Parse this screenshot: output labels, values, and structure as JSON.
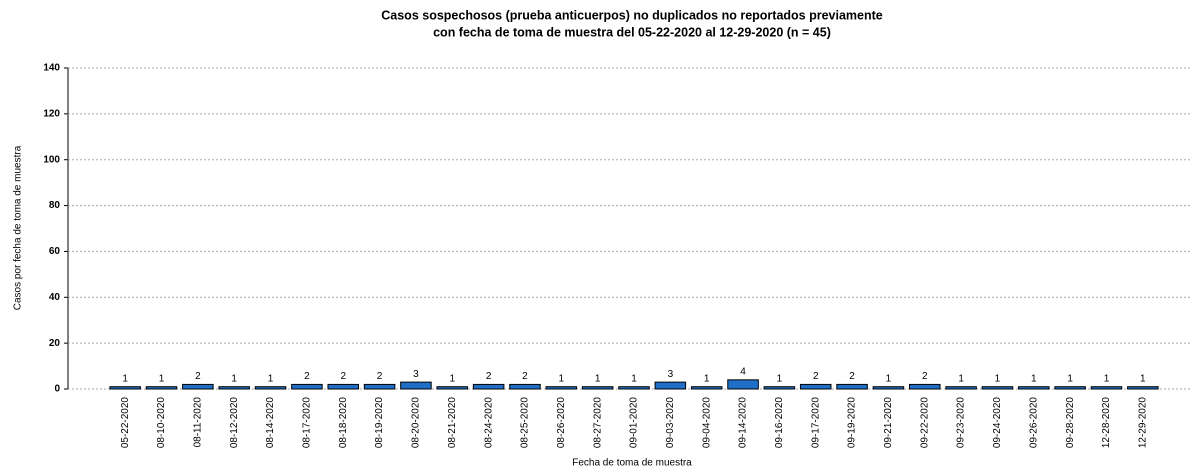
{
  "chart_data": {
    "type": "bar",
    "title": [
      "Casos sospechosos (prueba anticuerpos) no duplicados no reportados previamente",
      "con fecha de toma de muestra del 05-22-2020 al 12-29-2020 (n = 45)"
    ],
    "x_label": "Fecha de toma de muestra",
    "y_label": "Casos por fecha de toma de muestra",
    "categories": [
      "05-22-2020",
      "08-10-2020",
      "08-11-2020",
      "08-12-2020",
      "08-14-2020",
      "08-17-2020",
      "08-18-2020",
      "08-19-2020",
      "08-20-2020",
      "08-21-2020",
      "08-24-2020",
      "08-25-2020",
      "08-26-2020",
      "08-27-2020",
      "09-01-2020",
      "09-03-2020",
      "09-04-2020",
      "09-14-2020",
      "09-16-2020",
      "09-17-2020",
      "09-19-2020",
      "09-21-2020",
      "09-22-2020",
      "09-23-2020",
      "09-24-2020",
      "09-26-2020",
      "09-28-2020",
      "12-28-2020",
      "12-29-2020"
    ],
    "values": [
      1,
      1,
      2,
      1,
      1,
      2,
      2,
      2,
      3,
      1,
      2,
      2,
      1,
      1,
      1,
      3,
      1,
      4,
      1,
      2,
      2,
      1,
      2,
      1,
      1,
      1,
      1,
      1,
      1
    ],
    "color": "#1f6fc8",
    "ylim": [
      0,
      140
    ],
    "yticks": [
      0,
      20,
      40,
      60,
      80,
      100,
      120,
      140
    ],
    "grid": true
  }
}
